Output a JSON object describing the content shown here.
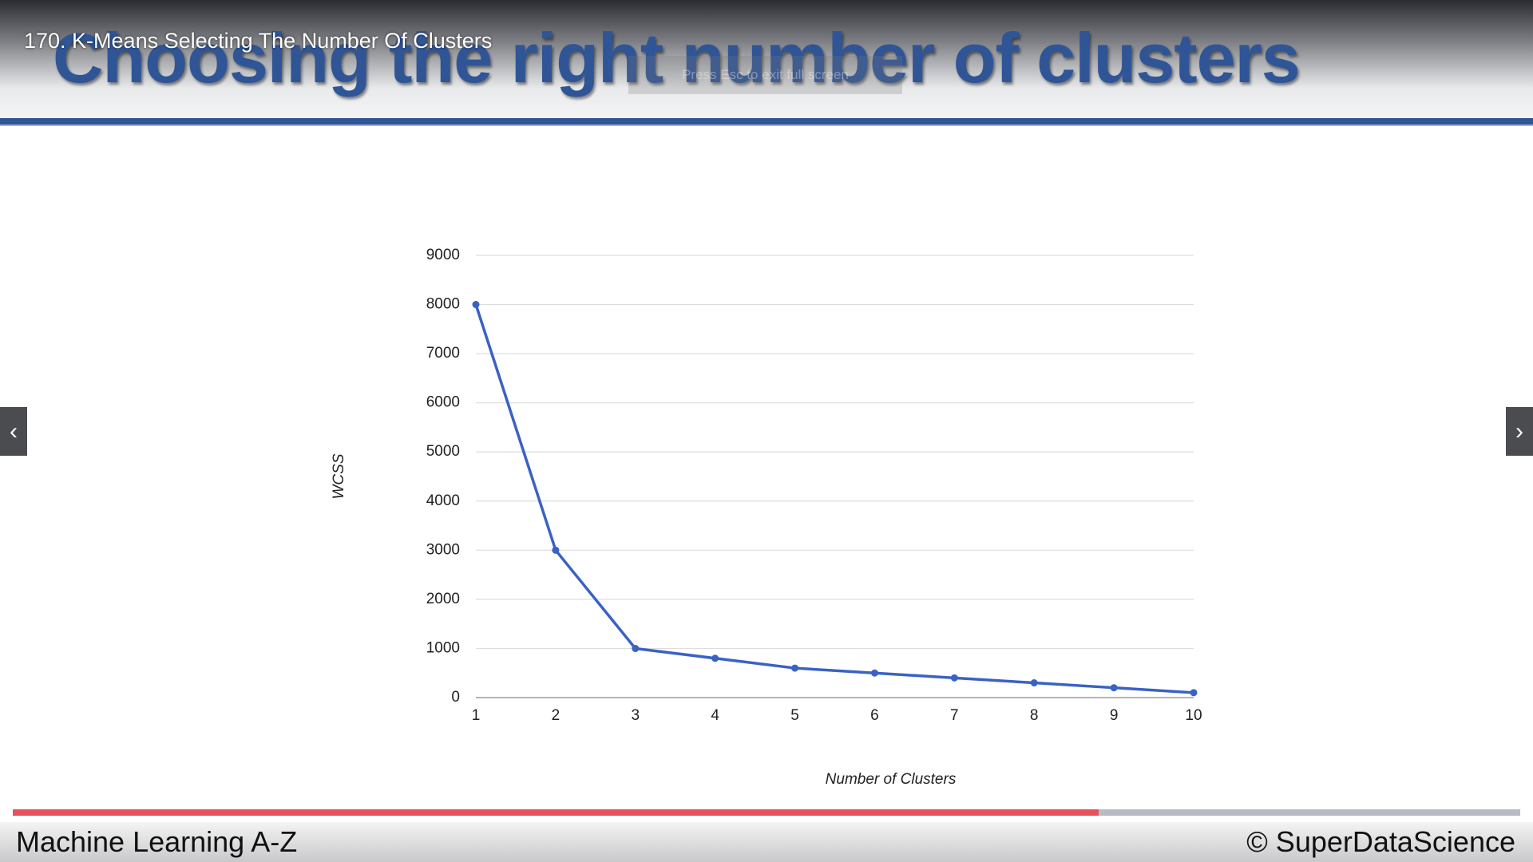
{
  "video_title": "170. K-Means Selecting The Number Of Clusters",
  "slide_title": "Choosing the right number of clusters",
  "fullscreen_hint": "Press Esc to exit full screen",
  "footer": {
    "left": "Machine Learning A-Z",
    "right": "© SuperDataScience"
  },
  "chart_data": {
    "type": "line",
    "x_label": "Number of Clusters",
    "y_label": "WCSS",
    "x": [
      1,
      2,
      3,
      4,
      5,
      6,
      7,
      8,
      9,
      10
    ],
    "series": [
      {
        "name": "WCSS",
        "color": "#3a62c4",
        "values": [
          8000,
          3000,
          1000,
          800,
          600,
          500,
          400,
          300,
          200,
          100
        ]
      }
    ],
    "xlim": [
      1,
      10
    ],
    "xticks": [
      1,
      2,
      3,
      4,
      5,
      6,
      7,
      8,
      9,
      10
    ],
    "ylim": [
      0,
      9000
    ],
    "yticks": [
      0,
      1000,
      2000,
      3000,
      4000,
      5000,
      6000,
      7000,
      8000,
      9000
    ],
    "grid": true
  }
}
